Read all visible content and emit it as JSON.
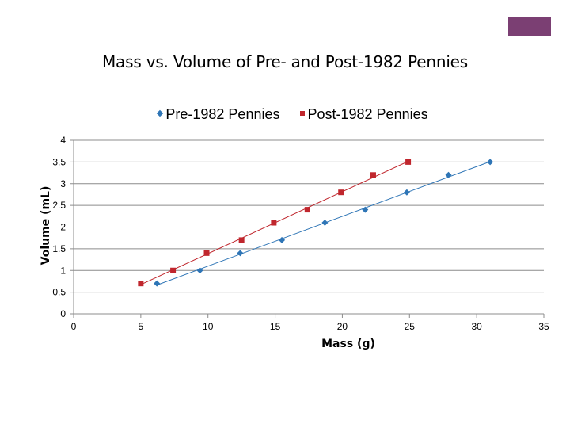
{
  "chart_data": {
    "type": "scatter",
    "title": "Mass vs. Volume of Pre- and Post-1982 Pennies",
    "xlabel": "Mass (g)",
    "ylabel": "Volume (mL)",
    "xlim": [
      0,
      35
    ],
    "ylim": [
      0,
      4
    ],
    "x_ticks": [
      "0",
      "5",
      "10",
      "15",
      "20",
      "25",
      "30",
      "35"
    ],
    "y_ticks": [
      "0",
      "0.5",
      "1",
      "1.5",
      "2",
      "2.5",
      "3",
      "3.5",
      "4"
    ],
    "grid": "horizontal",
    "legend_position": "top",
    "trendlines": "linear",
    "series": [
      {
        "name": "Pre-1982 Pennies",
        "color": "#2e75b6",
        "marker": "diamond",
        "points": [
          [
            6.2,
            0.7
          ],
          [
            9.4,
            1.0
          ],
          [
            12.4,
            1.4
          ],
          [
            15.5,
            1.7
          ],
          [
            18.7,
            2.1
          ],
          [
            21.7,
            2.4
          ],
          [
            24.8,
            2.8
          ],
          [
            27.9,
            3.2
          ],
          [
            31.0,
            3.5
          ]
        ]
      },
      {
        "name": "Post-1982 Pennies",
        "color": "#c0262d",
        "marker": "square",
        "points": [
          [
            5.0,
            0.7
          ],
          [
            7.4,
            1.0
          ],
          [
            9.9,
            1.4
          ],
          [
            12.5,
            1.7
          ],
          [
            14.9,
            2.1
          ],
          [
            17.4,
            2.4
          ],
          [
            19.9,
            2.8
          ],
          [
            22.3,
            3.2
          ],
          [
            24.9,
            3.5
          ]
        ]
      }
    ]
  }
}
